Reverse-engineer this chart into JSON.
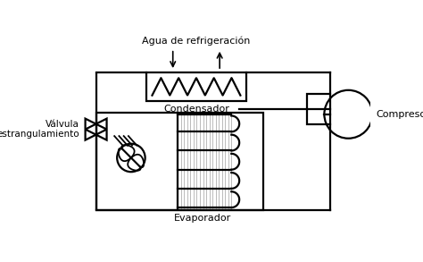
{
  "background_color": "#ffffff",
  "line_color": "#000000",
  "labels": {
    "agua": "Agua de refrigeración",
    "condensador": "Condensador",
    "valvula": "Válvula\nestrangulamiento",
    "evaporador": "Evaporador",
    "compresor": "Compresor"
  },
  "figsize": [
    4.74,
    2.93
  ],
  "dpi": 100
}
